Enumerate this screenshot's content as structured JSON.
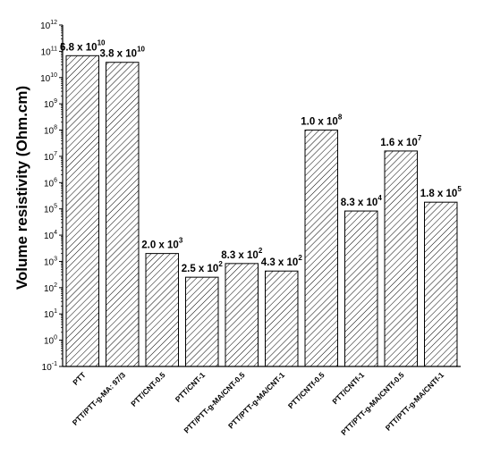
{
  "chart_data": {
    "type": "bar",
    "ylabel": "Volume resistivity (Ohm.cm)",
    "yscale": "log",
    "ylim": [
      0.1,
      1000000000000.0
    ],
    "ytick_labels": [
      {
        "base": "10",
        "exp": "-1"
      },
      {
        "base": "10",
        "exp": "0"
      },
      {
        "base": "10",
        "exp": "1"
      },
      {
        "base": "10",
        "exp": "2"
      },
      {
        "base": "10",
        "exp": "3"
      },
      {
        "base": "10",
        "exp": "4"
      },
      {
        "base": "10",
        "exp": "5"
      },
      {
        "base": "10",
        "exp": "6"
      },
      {
        "base": "10",
        "exp": "7"
      },
      {
        "base": "10",
        "exp": "8"
      },
      {
        "base": "10",
        "exp": "9"
      },
      {
        "base": "10",
        "exp": "10"
      },
      {
        "base": "10",
        "exp": "11"
      },
      {
        "base": "10",
        "exp": "12"
      }
    ],
    "categories": [
      "PTT",
      "PTT/PTT-g-MA: 97/3",
      "PTT/CNT-0.5",
      "PTT/CNT-1",
      "PTT/PTT-g-MA/CNT-0.5",
      "PTT/PTT-g-MA/CNT-1",
      "PTT/CNTf-0.5",
      "PTT/CNTf-1",
      "PTT/PTT-g-MA/CNTf-0.5",
      "PTT/PTT-g-MA/CNTf-1"
    ],
    "values": [
      68000000000.0,
      38000000000.0,
      2000,
      250,
      830,
      430,
      100000000.0,
      83000.0,
      16000000.0,
      180000.0
    ],
    "data_labels": [
      {
        "mantissa": "6.8 x 10",
        "exp": "10"
      },
      {
        "mantissa": "3.8 x 10",
        "exp": "10"
      },
      {
        "mantissa": "2.0 x 10",
        "exp": "3"
      },
      {
        "mantissa": "2.5 x 10",
        "exp": "2"
      },
      {
        "mantissa": "8.3 x 10",
        "exp": "2"
      },
      {
        "mantissa": "4.3 x 10",
        "exp": "2"
      },
      {
        "mantissa": "1.0 x 10",
        "exp": "8"
      },
      {
        "mantissa": "8.3 x 10",
        "exp": "4"
      },
      {
        "mantissa": "1.6 x 10",
        "exp": "7"
      },
      {
        "mantissa": "1.8 x 10",
        "exp": "5"
      }
    ],
    "bar_fill": "diagonal hatch",
    "bar_color": "#000000",
    "grid": false,
    "legend": "none"
  }
}
